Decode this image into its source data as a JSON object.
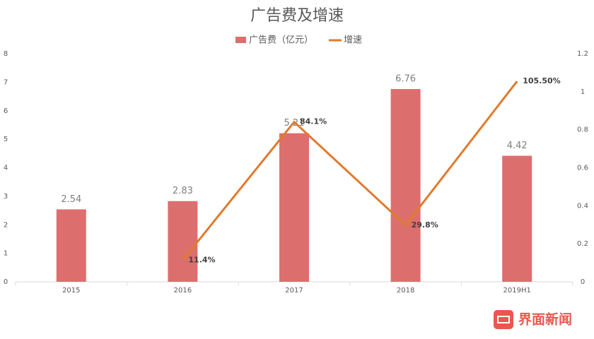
{
  "chart_data": {
    "type": "bar",
    "title": "广告费及增速",
    "categories": [
      "2015",
      "2016",
      "2017",
      "2018",
      "2019H1"
    ],
    "series": [
      {
        "name": "广告费（亿元）",
        "color": "#dc6f6e",
        "values": [
          2.54,
          2.83,
          5.21,
          6.76,
          4.42
        ]
      },
      {
        "name": "增速",
        "type": "line",
        "axis": "y2",
        "color": "#e07b2e",
        "values": [
          null,
          0.114,
          0.841,
          0.298,
          1.055
        ],
        "value_labels": [
          null,
          "11.4%",
          "84.1%",
          "29.8%",
          "105.50%"
        ]
      }
    ],
    "ylim": [
      0,
      8
    ],
    "yticks": [
      0,
      1,
      2,
      3,
      4,
      5,
      6,
      7,
      8
    ],
    "y2lim": [
      0,
      1.2
    ],
    "y2ticks": [
      0,
      0.2,
      0.4,
      0.6,
      0.8,
      1,
      1.2
    ],
    "legend": "top",
    "watermark": "界面新闻"
  }
}
